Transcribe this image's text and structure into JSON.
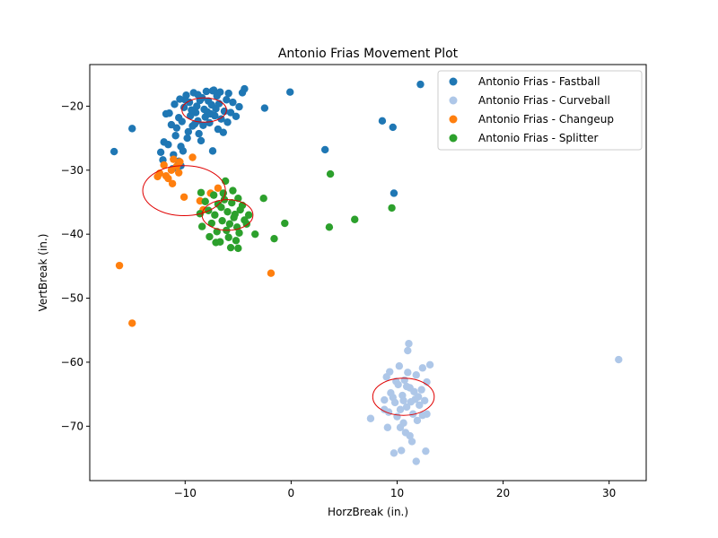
{
  "chart_data": {
    "type": "scatter",
    "title": "Antonio Frias Movement Plot",
    "xlabel": "HorzBreak (in.)",
    "ylabel": "VertBreak (in.)",
    "xlim": [
      -19,
      33.5
    ],
    "ylim": [
      -78.5,
      -13.5
    ],
    "xticks": [
      -10,
      0,
      10,
      20,
      30
    ],
    "yticks": [
      -20,
      -30,
      -40,
      -50,
      -60,
      -70
    ],
    "grid": false,
    "legend_position": "top-right",
    "series": [
      {
        "name": "Antonio Frias - Fastball",
        "color": "#1f77b4",
        "points": [
          [
            -8.2,
            -20.5
          ],
          [
            -7.5,
            -19.8
          ],
          [
            -9.0,
            -21.0
          ],
          [
            -8.8,
            -22.3
          ],
          [
            -7.9,
            -20.9
          ],
          [
            -9.6,
            -19.4
          ],
          [
            -8.4,
            -18.7
          ],
          [
            -7.2,
            -21.5
          ],
          [
            -10.1,
            -20.2
          ],
          [
            -6.8,
            -19.6
          ],
          [
            -9.3,
            -23.1
          ],
          [
            -8.0,
            -17.7
          ],
          [
            -7.0,
            -18.4
          ],
          [
            -10.6,
            -21.8
          ],
          [
            -6.3,
            -20.8
          ],
          [
            -8.7,
            -24.3
          ],
          [
            -9.9,
            -18.3
          ],
          [
            -7.7,
            -22.6
          ],
          [
            -6.6,
            -22.0
          ],
          [
            -10.8,
            -23.4
          ],
          [
            -8.1,
            -21.7
          ],
          [
            -9.2,
            -17.9
          ],
          [
            -7.4,
            -17.6
          ],
          [
            -6.1,
            -19.0
          ],
          [
            -11.0,
            -19.7
          ],
          [
            -5.7,
            -21.0
          ],
          [
            -8.5,
            -25.4
          ],
          [
            -9.7,
            -24.0
          ],
          [
            -6.9,
            -23.6
          ],
          [
            -10.3,
            -22.4
          ],
          [
            -7.8,
            -19.2
          ],
          [
            -8.9,
            -20.0
          ],
          [
            -9.5,
            -21.5
          ],
          [
            -7.1,
            -20.4
          ],
          [
            -5.9,
            -18.0
          ],
          [
            -11.5,
            -21.1
          ],
          [
            -6.4,
            -24.1
          ],
          [
            -8.3,
            -23.0
          ],
          [
            -10.0,
            -19.0
          ],
          [
            -7.6,
            -21.2
          ],
          [
            -9.1,
            -22.8
          ],
          [
            -8.6,
            -19.1
          ],
          [
            -6.0,
            -22.5
          ],
          [
            -11.3,
            -22.9
          ],
          [
            -5.5,
            -19.4
          ],
          [
            -5.2,
            -21.6
          ],
          [
            -4.9,
            -20.1
          ],
          [
            -9.8,
            -25.0
          ],
          [
            -10.9,
            -24.6
          ],
          [
            -11.6,
            -26.0
          ],
          [
            -11.8,
            -21.2
          ],
          [
            -10.5,
            -18.9
          ],
          [
            -7.3,
            -17.5
          ],
          [
            -6.7,
            -17.8
          ],
          [
            -8.8,
            -18.2
          ],
          [
            -9.4,
            -20.6
          ],
          [
            -12.0,
            -25.6
          ],
          [
            -10.4,
            -26.3
          ],
          [
            -12.3,
            -27.2
          ],
          [
            -11.1,
            -27.6
          ],
          [
            -10.6,
            -28.6
          ],
          [
            -12.1,
            -28.4
          ],
          [
            -10.2,
            -27.0
          ],
          [
            -11.2,
            -29.8
          ],
          [
            -10.4,
            -29.3
          ],
          [
            -7.4,
            -27.0
          ],
          [
            -4.6,
            -17.9
          ],
          [
            -4.4,
            -17.3
          ],
          [
            -2.5,
            -20.3
          ],
          [
            -0.1,
            -17.8
          ],
          [
            -15.0,
            -23.5
          ],
          [
            -16.7,
            -27.1
          ],
          [
            12.2,
            -16.6
          ],
          [
            8.6,
            -22.3
          ],
          [
            9.6,
            -23.3
          ],
          [
            3.2,
            -26.8
          ],
          [
            9.7,
            -33.6
          ]
        ]
      },
      {
        "name": "Antonio Frias - Curveball",
        "color": "#aec7e8",
        "points": [
          [
            10.5,
            -65.2
          ],
          [
            11.2,
            -64.0
          ],
          [
            9.8,
            -66.3
          ],
          [
            10.9,
            -67.0
          ],
          [
            11.7,
            -65.8
          ],
          [
            10.1,
            -63.5
          ],
          [
            12.1,
            -66.7
          ],
          [
            9.4,
            -64.8
          ],
          [
            10.7,
            -62.8
          ],
          [
            11.5,
            -68.1
          ],
          [
            10.0,
            -68.5
          ],
          [
            12.3,
            -64.3
          ],
          [
            9.2,
            -67.8
          ],
          [
            11.0,
            -61.6
          ],
          [
            10.3,
            -70.2
          ],
          [
            12.6,
            -66.0
          ],
          [
            9.0,
            -62.3
          ],
          [
            11.8,
            -62.0
          ],
          [
            10.6,
            -69.5
          ],
          [
            9.6,
            -65.5
          ],
          [
            11.3,
            -66.2
          ],
          [
            12.8,
            -63.1
          ],
          [
            10.8,
            -71.0
          ],
          [
            9.3,
            -61.5
          ],
          [
            11.9,
            -69.1
          ],
          [
            10.2,
            -60.6
          ],
          [
            12.4,
            -68.3
          ],
          [
            8.8,
            -65.9
          ],
          [
            11.4,
            -72.4
          ],
          [
            10.4,
            -73.8
          ],
          [
            9.7,
            -74.2
          ],
          [
            11.8,
            -75.5
          ],
          [
            12.7,
            -73.9
          ],
          [
            11.2,
            -71.5
          ],
          [
            9.1,
            -70.2
          ],
          [
            11.1,
            -57.1
          ],
          [
            11.0,
            -58.2
          ],
          [
            13.1,
            -60.4
          ],
          [
            12.4,
            -60.9
          ],
          [
            8.8,
            -67.4
          ],
          [
            7.5,
            -68.8
          ],
          [
            12.8,
            -68.1
          ],
          [
            10.6,
            -66.0
          ],
          [
            10.9,
            -63.8
          ],
          [
            11.6,
            -64.6
          ],
          [
            10.3,
            -67.4
          ],
          [
            9.9,
            -63.0
          ],
          [
            12.0,
            -65.4
          ],
          [
            30.9,
            -59.6
          ]
        ]
      },
      {
        "name": "Antonio Frias - Changeup",
        "color": "#ff7f0e",
        "points": [
          [
            -12.4,
            -30.5
          ],
          [
            -11.8,
            -30.9
          ],
          [
            -11.3,
            -30.0
          ],
          [
            -10.8,
            -29.4
          ],
          [
            -11.1,
            -28.3
          ],
          [
            -12.0,
            -29.2
          ],
          [
            -10.6,
            -30.4
          ],
          [
            -11.6,
            -31.3
          ],
          [
            -12.6,
            -31.0
          ],
          [
            -10.5,
            -28.7
          ],
          [
            -11.2,
            -32.1
          ],
          [
            -10.1,
            -34.2
          ],
          [
            -9.3,
            -28.0
          ],
          [
            -8.6,
            -34.8
          ],
          [
            -8.3,
            -36.2
          ],
          [
            -6.9,
            -32.8
          ],
          [
            -7.6,
            -33.6
          ],
          [
            -16.2,
            -44.9
          ],
          [
            -15.0,
            -53.9
          ],
          [
            -1.9,
            -46.1
          ]
        ]
      },
      {
        "name": "Antonio Frias - Splitter",
        "color": "#2ca02c",
        "points": [
          [
            -6.0,
            -36.5
          ],
          [
            -5.4,
            -37.4
          ],
          [
            -6.6,
            -35.8
          ],
          [
            -5.8,
            -38.4
          ],
          [
            -7.2,
            -37.0
          ],
          [
            -4.8,
            -36.2
          ],
          [
            -6.3,
            -34.6
          ],
          [
            -5.1,
            -38.9
          ],
          [
            -7.5,
            -38.3
          ],
          [
            -4.4,
            -37.8
          ],
          [
            -6.9,
            -35.3
          ],
          [
            -5.6,
            -35.1
          ],
          [
            -7.8,
            -36.3
          ],
          [
            -6.1,
            -39.4
          ],
          [
            -4.6,
            -35.5
          ],
          [
            -7.0,
            -39.6
          ],
          [
            -5.3,
            -36.9
          ],
          [
            -8.1,
            -34.9
          ],
          [
            -6.5,
            -37.9
          ],
          [
            -4.2,
            -38.4
          ],
          [
            -7.3,
            -33.9
          ],
          [
            -5.9,
            -40.5
          ],
          [
            -8.4,
            -38.8
          ],
          [
            -4.9,
            -39.8
          ],
          [
            -6.7,
            -41.2
          ],
          [
            -5.0,
            -34.4
          ],
          [
            -7.7,
            -40.4
          ],
          [
            -6.4,
            -33.6
          ],
          [
            -8.6,
            -36.8
          ],
          [
            -5.2,
            -41.0
          ],
          [
            -7.1,
            -41.3
          ],
          [
            -5.7,
            -42.1
          ],
          [
            -5.0,
            -42.2
          ],
          [
            -6.2,
            -31.7
          ],
          [
            -5.5,
            -33.2
          ],
          [
            -8.5,
            -33.5
          ],
          [
            -4.0,
            -37.0
          ],
          [
            -3.4,
            -40.0
          ],
          [
            -2.6,
            -34.4
          ],
          [
            -1.6,
            -40.7
          ],
          [
            -0.6,
            -38.3
          ],
          [
            3.7,
            -30.6
          ],
          [
            3.6,
            -38.9
          ],
          [
            6.0,
            -37.7
          ],
          [
            9.5,
            -35.9
          ]
        ]
      }
    ],
    "ellipses": [
      {
        "series": "Antonio Frias - Fastball",
        "center": [
          -8.2,
          -20.6
        ],
        "rx": 2.1,
        "ry": 1.9
      },
      {
        "series": "Antonio Frias - Changeup",
        "center": [
          -10.1,
          -33.2
        ],
        "rx": 3.9,
        "ry": 3.9
      },
      {
        "series": "Antonio Frias - Splitter",
        "center": [
          -6.0,
          -37.0
        ],
        "rx": 2.4,
        "ry": 2.4
      },
      {
        "series": "Antonio Frias - Curveball",
        "center": [
          10.6,
          -65.4
        ],
        "rx": 2.9,
        "ry": 2.9
      }
    ],
    "ellipse_color": "#e00000"
  }
}
